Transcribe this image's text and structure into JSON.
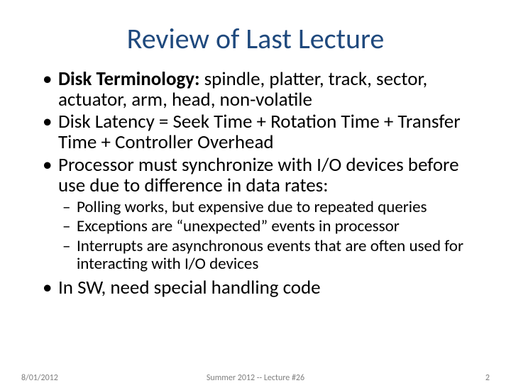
{
  "title": "Review of Last Lecture",
  "title_color": "#1f497d",
  "body_color": "#000000",
  "footer_color": "#7f7f7f",
  "background_color": "#ffffff",
  "bullets": [
    {
      "bold": "Disk Terminology:",
      "rest": "  spindle, platter, track, sector, actuator, arm, head, non-volatile"
    },
    {
      "text": "Disk Latency = Seek Time + Rotation Time + Transfer Time + Controller Overhead"
    },
    {
      "text": "Processor must synchronize with I/O devices before use due to difference in data rates:"
    }
  ],
  "sub_bullets": [
    "Polling works, but expensive due to repeated queries",
    "Exceptions are “unexpected” events in processor",
    "Interrupts are asynchronous events that are often used for interacting with I/O devices"
  ],
  "last_bullet": "In SW, need special handling code",
  "footer": {
    "date": "8/01/2012",
    "center": "Summer 2012 -- Lecture #26",
    "page": "2"
  }
}
